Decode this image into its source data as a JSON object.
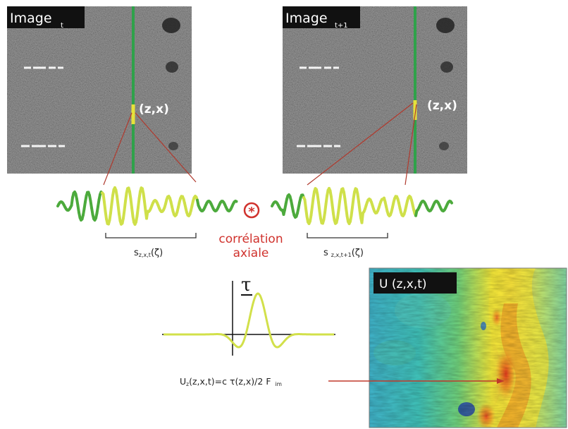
{
  "image1": {
    "label": "Image",
    "sub": "t",
    "point_label": "(z,x)"
  },
  "image2": {
    "label": "Image",
    "sub": "t+1",
    "point_label": "(z,x)"
  },
  "correlation": {
    "symbol": "*",
    "line1": "corrélation",
    "line2": "axiale"
  },
  "signal1_label": {
    "main": "s",
    "sub": "z,x,t",
    "arg": "(ζ)"
  },
  "signal2_label": {
    "main": "s",
    "sub": "z,x,t+1",
    "arg": "(ζ)"
  },
  "tau_label": "τ",
  "formula": {
    "u": "U",
    "u_sub": "z",
    "body": "(z,x,t)=c τ(z,x)/2 F",
    "f_sub": "im"
  },
  "map": {
    "label": "U (z,x,t)"
  },
  "colors": {
    "wave_dark_green": "#4caa3c",
    "wave_yellow": "#cfe04a",
    "vertical_line_green": "#2fa24a",
    "correlation_red": "#d0322d",
    "map_cyan": "#3fb0c6",
    "map_yellow": "#f1e63a",
    "map_red": "#e4311c",
    "arrow_red": "#c0392b"
  }
}
